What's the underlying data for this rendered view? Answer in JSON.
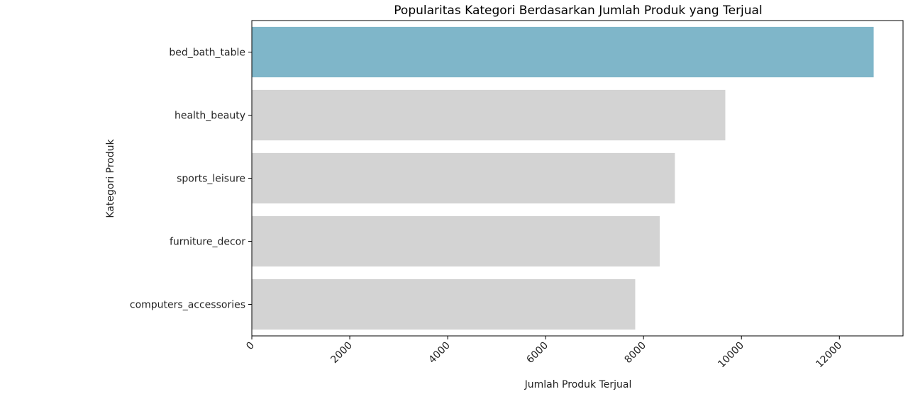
{
  "chart_data": {
    "type": "bar",
    "orientation": "horizontal",
    "title": "Popularitas Kategori Berdasarkan Jumlah Produk yang Terjual",
    "xlabel": "Jumlah Produk Terjual",
    "ylabel": "Kategori Produk",
    "categories": [
      "bed_bath_table",
      "health_beauty",
      "sports_leisure",
      "furniture_decor",
      "computers_accessories"
    ],
    "values": [
      12700,
      9670,
      8640,
      8330,
      7830
    ],
    "xlim": [
      0,
      13300
    ],
    "xticks": [
      0,
      2000,
      4000,
      6000,
      8000,
      10000,
      12000
    ],
    "xtick_labels": [
      "0",
      "2000",
      "4000",
      "6000",
      "8000",
      "10000",
      "12000"
    ],
    "grid": false,
    "colors": {
      "highlight": "#7fb6c9",
      "default": "#d3d3d3"
    },
    "highlight_index": 0
  }
}
